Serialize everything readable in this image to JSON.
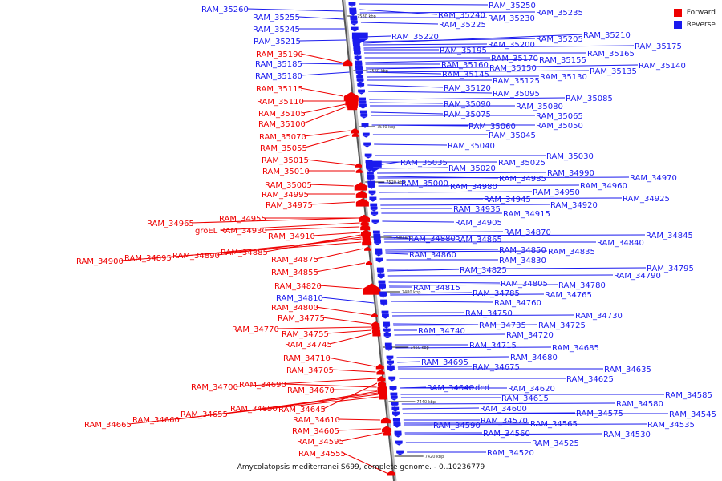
{
  "legend": {
    "forward_label": "Forward",
    "reverse_label": "Reverse",
    "forward_color": "#ee0000",
    "reverse_color": "#1a1aee"
  },
  "caption": "Amycolatopsis mediterranei S699, complete genome. - 0..10236779",
  "ticks": [
    "7580 kbp",
    "7560 kbp",
    "7540 kbp",
    "7520 kbp",
    "7500 kbp",
    "7480 kbp",
    "7460 kbp",
    "7440 kbp",
    "7420 kbp"
  ],
  "forward_genes": [
    "RAM_35190",
    "RAM_35115",
    "RAM_35110",
    "RAM_35105",
    "RAM_35100",
    "RAM_35070",
    "RAM_35055",
    "RAM_35015",
    "RAM_35010",
    "RAM_35005",
    "RAM_34995",
    "RAM_34975",
    "RAM_34965",
    "RAM_34955",
    "groEL",
    "RAM_34930",
    "RAM_34910",
    "RAM_34900",
    "RAM_34895",
    "RAM_34890",
    "RAM_34885",
    "RAM_34875",
    "RAM_34855",
    "RAM_34820",
    "RAM_34800",
    "RAM_34775",
    "RAM_34770",
    "RAM_34755",
    "RAM_34745",
    "RAM_34710",
    "RAM_34705",
    "RAM_34700",
    "RAM_34690",
    "RAM_34670",
    "RAM_34665",
    "RAM_34660",
    "RAM_34655",
    "RAM_34650",
    "RAM_34645",
    "RAM_34610",
    "RAM_34605",
    "RAM_34595",
    "RAM_34555"
  ],
  "reverse_genes": [
    "RAM_35260",
    "RAM_35255",
    "RAM_35245",
    "RAM_35215",
    "RAM_35185",
    "RAM_35180",
    "RAM_34810",
    "RAM_35250",
    "RAM_35240",
    "RAM_35235",
    "RAM_35230",
    "RAM_35225",
    "RAM_35220",
    "RAM_35210",
    "RAM_35205",
    "RAM_35200",
    "RAM_35195",
    "RAM_35175",
    "RAM_35170",
    "RAM_35165",
    "RAM_35160",
    "RAM_35155",
    "RAM_35150",
    "RAM_35145",
    "RAM_35140",
    "RAM_35135",
    "RAM_35130",
    "RAM_35125",
    "RAM_35120",
    "RAM_35095",
    "RAM_35090",
    "RAM_35085",
    "RAM_35080",
    "RAM_35075",
    "RAM_35065",
    "RAM_35060",
    "RAM_35050",
    "RAM_35045",
    "RAM_35040",
    "RAM_35035",
    "RAM_35030",
    "RAM_35025",
    "RAM_35020",
    "RAM_35000",
    "RAM_34990",
    "RAM_34985",
    "RAM_34980",
    "RAM_34970",
    "RAM_34960",
    "RAM_34950",
    "RAM_34945",
    "RAM_34935",
    "RAM_34925",
    "RAM_34920",
    "RAM_34915",
    "RAM_34905",
    "RAM_34880",
    "RAM_34870",
    "RAM_34865",
    "RAM_34860",
    "RAM_34850",
    "RAM_34845",
    "RAM_34840",
    "RAM_34835",
    "RAM_34830",
    "RAM_34825",
    "RAM_34815",
    "RAM_34805",
    "RAM_34795",
    "RAM_34790",
    "RAM_34785",
    "RAM_34780",
    "RAM_34765",
    "RAM_34760",
    "RAM_34750",
    "RAM_34740",
    "RAM_34735",
    "RAM_34730",
    "RAM_34725",
    "RAM_34720",
    "RAM_34715",
    "RAM_34695",
    "RAM_34685",
    "RAM_34680",
    "RAM_34675",
    "RAM_34640",
    "dcd",
    "RAM_34635",
    "RAM_34625",
    "RAM_34620",
    "RAM_34615",
    "RAM_34600",
    "RAM_34590",
    "RAM_34585",
    "RAM_34580",
    "RAM_34575",
    "RAM_34570",
    "RAM_34565",
    "RAM_34560",
    "RAM_34545",
    "RAM_34535",
    "RAM_34530",
    "RAM_34525",
    "RAM_34520"
  ]
}
